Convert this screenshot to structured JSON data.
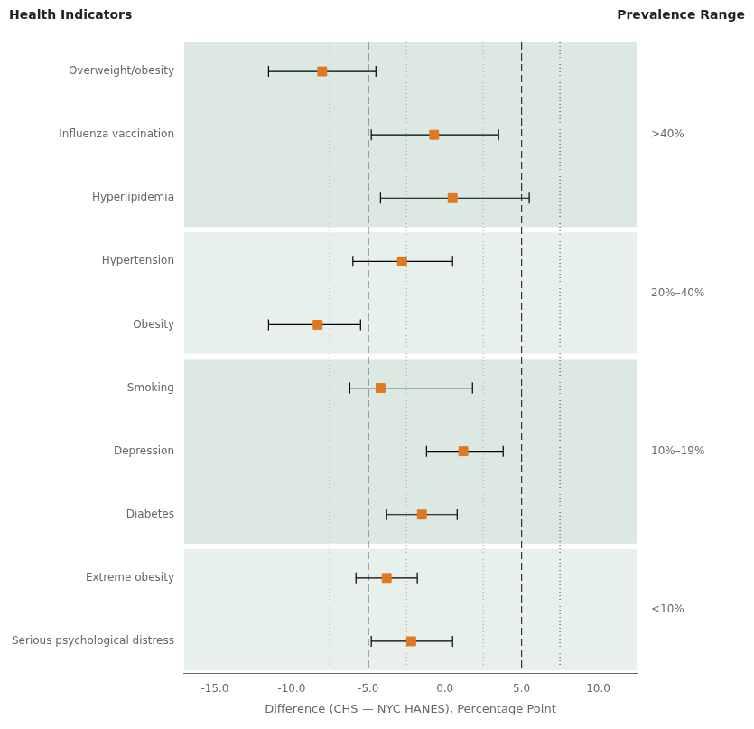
{
  "chart_data": {
    "type": "forest",
    "title": "Health Indicators",
    "categories": [
      "Overweight/obesity",
      "Influenza vaccination",
      "Hyperlipidemia",
      "Hypertension",
      "Obesity",
      "Smoking",
      "Depression",
      "Diabetes",
      "Extreme obesity",
      "Serious psychological distress"
    ],
    "values": [
      -8.0,
      -0.7,
      0.5,
      -2.8,
      -8.3,
      -4.2,
      1.2,
      -1.5,
      -3.8,
      -2.2
    ],
    "ci_lower": [
      -11.5,
      -4.8,
      -4.2,
      -6.0,
      -11.5,
      -6.2,
      -1.2,
      -3.8,
      -5.8,
      -4.8
    ],
    "ci_upper": [
      -4.5,
      3.5,
      5.5,
      0.5,
      -5.5,
      1.8,
      3.8,
      0.8,
      -1.8,
      0.5
    ],
    "color": "#e07820",
    "marker": "square",
    "xlabel": "Difference (CHS — NYC HANES), Percentage Point",
    "xlim": [
      -17.0,
      12.5
    ],
    "xticks": [
      {
        "value": -15,
        "label": "-15.0"
      },
      {
        "value": -10,
        "label": "-10.0"
      },
      {
        "value": -5,
        "label": "-5.0"
      },
      {
        "value": 0,
        "label": "0.0"
      },
      {
        "value": 5,
        "label": "5.0"
      },
      {
        "value": 10,
        "label": "10.0"
      }
    ],
    "grid": false,
    "reference_lines": [
      {
        "value": -7.5,
        "line_style": "dotted",
        "color": "#555555"
      },
      {
        "value": 7.5,
        "line_style": "dotted",
        "color": "#555555"
      },
      {
        "value": -5.0,
        "line_style": "dashed",
        "color": "#333333"
      },
      {
        "value": 5.0,
        "line_style": "dashed",
        "color": "#333333"
      },
      {
        "value": -2.5,
        "line_style": "dotted",
        "color": "#aaaaaa"
      },
      {
        "value": 2.5,
        "line_style": "dotted",
        "color": "#aaaaaa"
      }
    ],
    "groups": {
      "title": "Prevalence Range",
      "items": [
        {
          "label": ">40%",
          "color": "#dce8e2",
          "members": [
            "Overweight/obesity",
            "Influenza vaccination",
            "Hyperlipidemia"
          ]
        },
        {
          "label": "20%–40%",
          "color": "#e8f0ec",
          "members": [
            "Hypertension",
            "Obesity"
          ]
        },
        {
          "label": "10%–19%",
          "color": "#dce8e2",
          "members": [
            "Smoking",
            "Depression",
            "Diabetes"
          ]
        },
        {
          "label": "<10%",
          "color": "#e8f0ec",
          "members": [
            "Extreme obesity",
            "Serious psychological distress"
          ]
        }
      ]
    }
  }
}
